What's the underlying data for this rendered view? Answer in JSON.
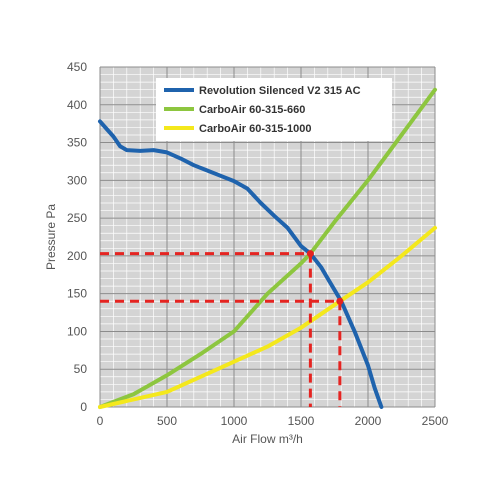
{
  "chart_data": {
    "type": "line",
    "title": "",
    "xlabel": "Air Flow m³/h",
    "ylabel": "Pressure Pa",
    "xlim": [
      0,
      2500
    ],
    "ylim": [
      0,
      450
    ],
    "x_ticks": [
      0,
      500,
      1000,
      1500,
      2000,
      2500
    ],
    "y_ticks": [
      0,
      50,
      100,
      150,
      200,
      250,
      300,
      350,
      400,
      450
    ],
    "grid": true,
    "legend_position": "top",
    "series": [
      {
        "name": "Revolution Silenced V2 315 AC",
        "color": "#1f63ad",
        "x": [
          0,
          50,
          100,
          150,
          200,
          300,
          400,
          500,
          600,
          700,
          800,
          900,
          1000,
          1100,
          1200,
          1300,
          1400,
          1500,
          1570,
          1650,
          1700,
          1800,
          1900,
          2000,
          2050,
          2100
        ],
        "y": [
          378,
          368,
          358,
          345,
          340,
          339,
          340,
          337,
          329,
          320,
          313,
          306,
          299,
          289,
          270,
          253,
          237,
          213,
          203,
          185,
          170,
          140,
          100,
          55,
          25,
          0
        ]
      },
      {
        "name": "CarboAir 60-315-660",
        "color": "#8dc63f",
        "x": [
          0,
          250,
          500,
          750,
          1000,
          1250,
          1500,
          1570,
          1750,
          2000,
          2250,
          2500
        ],
        "y": [
          0,
          17,
          42,
          70,
          100,
          150,
          190,
          203,
          245,
          300,
          360,
          420
        ]
      },
      {
        "name": "CarboAir 60-315-1000",
        "color": "#f4e81c",
        "x": [
          0,
          250,
          500,
          750,
          1000,
          1250,
          1500,
          1790,
          2000,
          2250,
          2500
        ],
        "y": [
          0,
          10,
          20,
          40,
          60,
          80,
          105,
          140,
          165,
          200,
          237
        ]
      }
    ],
    "reference_lines": [
      {
        "color": "#e52421",
        "x": 1570,
        "y": 203
      },
      {
        "color": "#e52421",
        "x": 1790,
        "y": 140
      }
    ]
  }
}
